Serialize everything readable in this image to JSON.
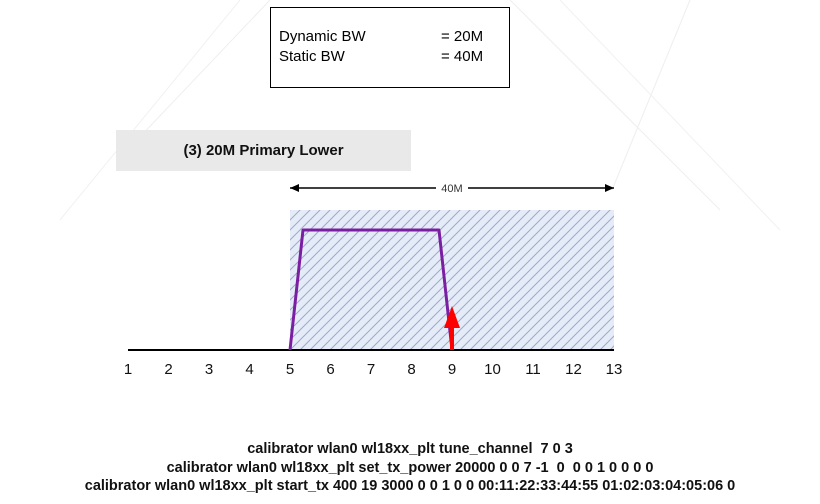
{
  "info_box": {
    "rows": [
      {
        "label": "Dynamic BW",
        "value": "= 20M"
      },
      {
        "label": "Static BW",
        "value": "= 40M"
      }
    ]
  },
  "mode_banner": "(3) 20M Primary Lower",
  "diagram": {
    "channel_ticks": [
      "1",
      "2",
      "3",
      "4",
      "5",
      "6",
      "7",
      "8",
      "9",
      "10",
      "11",
      "12",
      "13"
    ],
    "static_band": {
      "from_channel": 5,
      "to_channel": 13,
      "label": "40M"
    },
    "signal_trace": {
      "start_channel": 5,
      "end_channel": 9,
      "color": "#7b1fa2"
    },
    "primary_marker": {
      "channel": 9,
      "color": "#ff0000"
    },
    "band_fill_color": "#e6ecf7",
    "hatch_color": "#9aaad0"
  },
  "commands": [
    "calibrator wlan0 wl18xx_plt tune_channel  7 0 3",
    "calibrator wlan0 wl18xx_plt set_tx_power 20000 0 0 7 -1  0  0 0 1 0 0 0 0",
    "calibrator wlan0 wl18xx_plt start_tx 400 19 3000 0 0 1 0 0 00:11:22:33:44:55 01:02:03:04:05:06 0"
  ]
}
